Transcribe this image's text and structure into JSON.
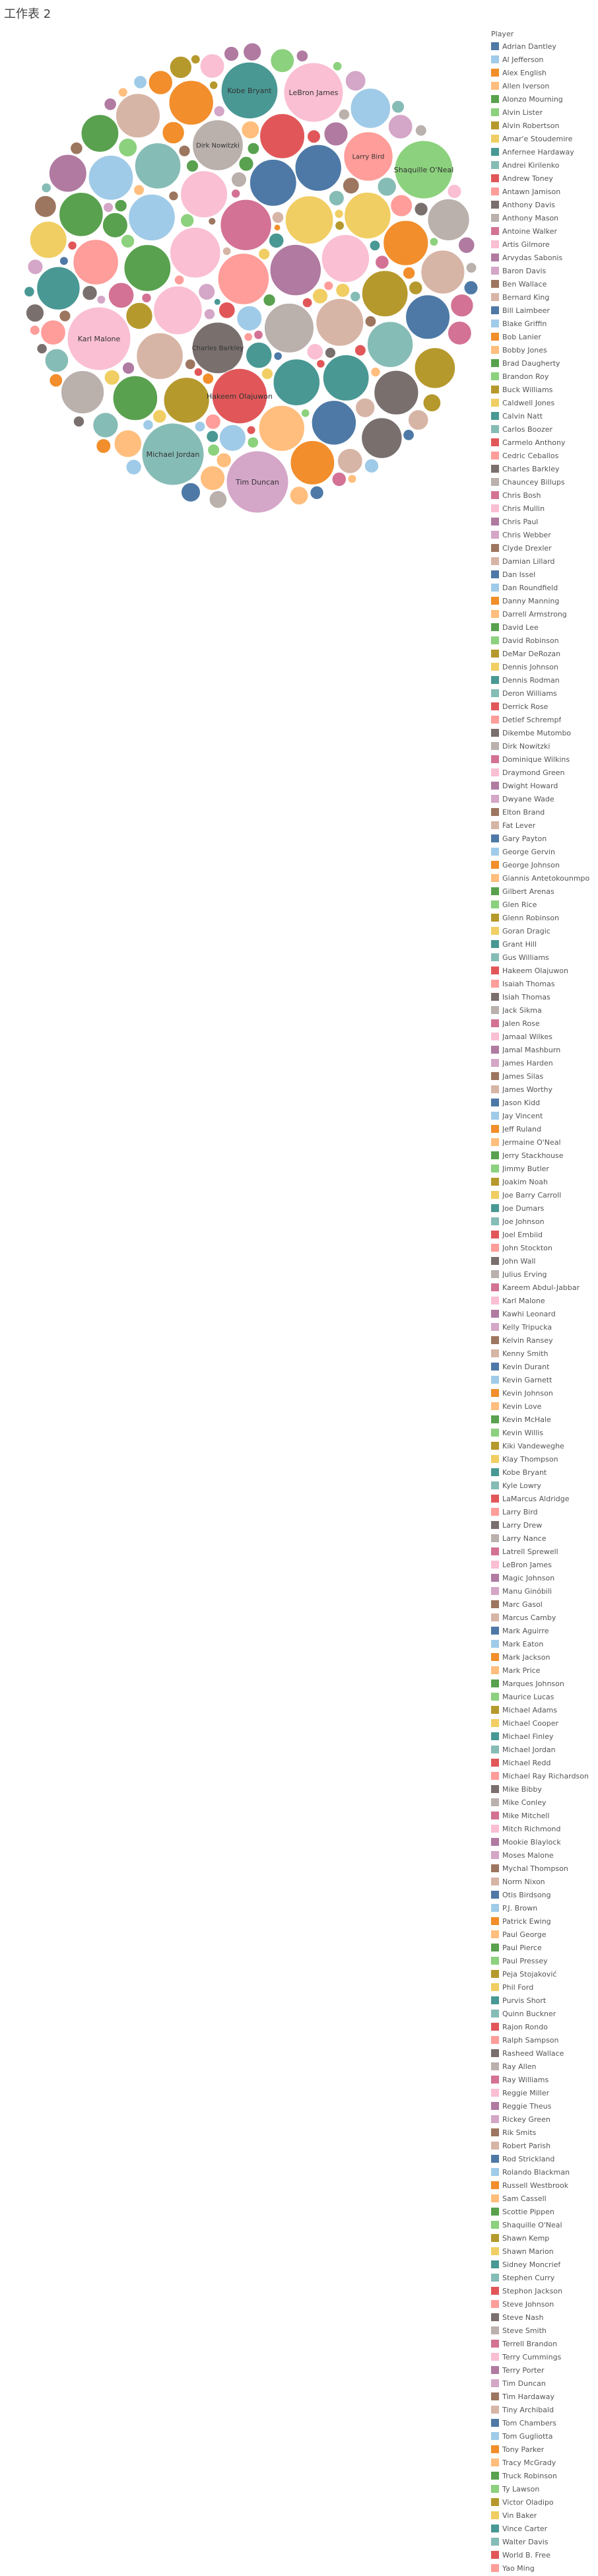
{
  "sheet_title": "工作表 2",
  "chart_data": {
    "type": "bubble",
    "title": "",
    "legend_position": "right",
    "legend_title": "Player",
    "players": [
      {
        "name": "Adrian Dantley",
        "color": "#4E79A7"
      },
      {
        "name": "Al Jefferson",
        "color": "#A0CBE8"
      },
      {
        "name": "Alex English",
        "color": "#F28E2B"
      },
      {
        "name": "Allen Iverson",
        "color": "#FFBE7D"
      },
      {
        "name": "Alonzo Mourning",
        "color": "#59A14F"
      },
      {
        "name": "Alvin Lister",
        "color": "#8CD17D"
      },
      {
        "name": "Alvin Robertson",
        "color": "#B6992D"
      },
      {
        "name": "Amar'e Stoudemire",
        "color": "#F1CE63"
      },
      {
        "name": "Anfernee Hardaway",
        "color": "#499894"
      },
      {
        "name": "Andrei Kirilenko",
        "color": "#86BCB6"
      },
      {
        "name": "Andrew Toney",
        "color": "#E15759"
      },
      {
        "name": "Antawn Jamison",
        "color": "#FF9D9A"
      },
      {
        "name": "Anthony Davis",
        "color": "#79706E"
      },
      {
        "name": "Anthony Mason",
        "color": "#BAB0AC"
      },
      {
        "name": "Antoine Walker",
        "color": "#D37295"
      },
      {
        "name": "Artis Gilmore",
        "color": "#FABFD2"
      },
      {
        "name": "Arvydas Sabonis",
        "color": "#B07AA1"
      },
      {
        "name": "Baron Davis",
        "color": "#D4A6C8"
      },
      {
        "name": "Ben Wallace",
        "color": "#9D7660"
      },
      {
        "name": "Bernard King",
        "color": "#D7B5A6"
      },
      {
        "name": "Bill Laimbeer",
        "color": "#4E79A7"
      },
      {
        "name": "Blake Griffin",
        "color": "#A0CBE8"
      },
      {
        "name": "Bob Lanier",
        "color": "#F28E2B"
      },
      {
        "name": "Bobby Jones",
        "color": "#FFBE7D"
      },
      {
        "name": "Brad Daugherty",
        "color": "#59A14F"
      },
      {
        "name": "Brandon Roy",
        "color": "#8CD17D"
      },
      {
        "name": "Buck Williams",
        "color": "#B6992D"
      },
      {
        "name": "Caldwell Jones",
        "color": "#F1CE63"
      },
      {
        "name": "Calvin Natt",
        "color": "#499894"
      },
      {
        "name": "Carlos Boozer",
        "color": "#86BCB6"
      },
      {
        "name": "Carmelo Anthony",
        "color": "#E15759"
      },
      {
        "name": "Cedric Ceballos",
        "color": "#FF9D9A"
      },
      {
        "name": "Charles Barkley",
        "color": "#79706E"
      },
      {
        "name": "Chauncey Billups",
        "color": "#BAB0AC"
      },
      {
        "name": "Chris Bosh",
        "color": "#D37295"
      },
      {
        "name": "Chris Mullin",
        "color": "#FABFD2"
      },
      {
        "name": "Chris Paul",
        "color": "#B07AA1"
      },
      {
        "name": "Chris Webber",
        "color": "#D4A6C8"
      },
      {
        "name": "Clyde Drexler",
        "color": "#9D7660"
      },
      {
        "name": "Damian Lillard",
        "color": "#D7B5A6"
      },
      {
        "name": "Dan Issel",
        "color": "#4E79A7"
      },
      {
        "name": "Dan Roundfield",
        "color": "#A0CBE8"
      },
      {
        "name": "Danny Manning",
        "color": "#F28E2B"
      },
      {
        "name": "Darrell Armstrong",
        "color": "#FFBE7D"
      },
      {
        "name": "David Lee",
        "color": "#59A14F"
      },
      {
        "name": "David Robinson",
        "color": "#8CD17D"
      },
      {
        "name": "DeMar DeRozan",
        "color": "#B6992D"
      },
      {
        "name": "Dennis Johnson",
        "color": "#F1CE63"
      },
      {
        "name": "Dennis Rodman",
        "color": "#499894"
      },
      {
        "name": "Deron Williams",
        "color": "#86BCB6"
      },
      {
        "name": "Derrick Rose",
        "color": "#E15759"
      },
      {
        "name": "Detlef Schrempf",
        "color": "#FF9D9A"
      },
      {
        "name": "Dikembe Mutombo",
        "color": "#79706E"
      },
      {
        "name": "Dirk Nowitzki",
        "color": "#BAB0AC"
      },
      {
        "name": "Dominique Wilkins",
        "color": "#D37295"
      },
      {
        "name": "Draymond Green",
        "color": "#FABFD2"
      },
      {
        "name": "Dwight Howard",
        "color": "#B07AA1"
      },
      {
        "name": "Dwyane Wade",
        "color": "#D4A6C8"
      },
      {
        "name": "Elton Brand",
        "color": "#9D7660"
      },
      {
        "name": "Fat Lever",
        "color": "#D7B5A6"
      },
      {
        "name": "Gary Payton",
        "color": "#4E79A7"
      },
      {
        "name": "George Gervin",
        "color": "#A0CBE8"
      },
      {
        "name": "George Johnson",
        "color": "#F28E2B"
      },
      {
        "name": "Giannis Antetokounmpo",
        "color": "#FFBE7D"
      },
      {
        "name": "Gilbert Arenas",
        "color": "#59A14F"
      },
      {
        "name": "Glen Rice",
        "color": "#8CD17D"
      },
      {
        "name": "Glenn Robinson",
        "color": "#B6992D"
      },
      {
        "name": "Goran Dragic",
        "color": "#F1CE63"
      },
      {
        "name": "Grant Hill",
        "color": "#499894"
      },
      {
        "name": "Gus Williams",
        "color": "#86BCB6"
      },
      {
        "name": "Hakeem Olajuwon",
        "color": "#E15759"
      },
      {
        "name": "Isaiah Thomas",
        "color": "#FF9D9A"
      },
      {
        "name": "Isiah Thomas",
        "color": "#79706E"
      },
      {
        "name": "Jack Sikma",
        "color": "#BAB0AC"
      },
      {
        "name": "Jalen Rose",
        "color": "#D37295"
      },
      {
        "name": "Jamaal Wilkes",
        "color": "#FABFD2"
      },
      {
        "name": "Jamal Mashburn",
        "color": "#B07AA1"
      },
      {
        "name": "James Harden",
        "color": "#D4A6C8"
      },
      {
        "name": "James Silas",
        "color": "#9D7660"
      },
      {
        "name": "James Worthy",
        "color": "#D7B5A6"
      },
      {
        "name": "Jason Kidd",
        "color": "#4E79A7"
      },
      {
        "name": "Jay Vincent",
        "color": "#A0CBE8"
      },
      {
        "name": "Jeff Ruland",
        "color": "#F28E2B"
      },
      {
        "name": "Jermaine O'Neal",
        "color": "#FFBE7D"
      },
      {
        "name": "Jerry Stackhouse",
        "color": "#59A14F"
      },
      {
        "name": "Jimmy Butler",
        "color": "#8CD17D"
      },
      {
        "name": "Joakim Noah",
        "color": "#B6992D"
      },
      {
        "name": "Joe Barry Carroll",
        "color": "#F1CE63"
      },
      {
        "name": "Joe Dumars",
        "color": "#499894"
      },
      {
        "name": "Joe Johnson",
        "color": "#86BCB6"
      },
      {
        "name": "Joel Embiid",
        "color": "#E15759"
      },
      {
        "name": "John Stockton",
        "color": "#FF9D9A"
      },
      {
        "name": "John Wall",
        "color": "#79706E"
      },
      {
        "name": "Julius Erving",
        "color": "#BAB0AC"
      },
      {
        "name": "Kareem Abdul-Jabbar",
        "color": "#D37295"
      },
      {
        "name": "Karl Malone",
        "color": "#FABFD2"
      },
      {
        "name": "Kawhi Leonard",
        "color": "#B07AA1"
      },
      {
        "name": "Kelly Tripucka",
        "color": "#D4A6C8"
      },
      {
        "name": "Kelvin Ransey",
        "color": "#9D7660"
      },
      {
        "name": "Kenny Smith",
        "color": "#D7B5A6"
      },
      {
        "name": "Kevin Durant",
        "color": "#4E79A7"
      },
      {
        "name": "Kevin Garnett",
        "color": "#A0CBE8"
      },
      {
        "name": "Kevin Johnson",
        "color": "#F28E2B"
      },
      {
        "name": "Kevin Love",
        "color": "#FFBE7D"
      },
      {
        "name": "Kevin McHale",
        "color": "#59A14F"
      },
      {
        "name": "Kevin Willis",
        "color": "#8CD17D"
      },
      {
        "name": "Kiki Vandeweghe",
        "color": "#B6992D"
      },
      {
        "name": "Klay Thompson",
        "color": "#F1CE63"
      },
      {
        "name": "Kobe Bryant",
        "color": "#499894"
      },
      {
        "name": "Kyle Lowry",
        "color": "#86BCB6"
      },
      {
        "name": "LaMarcus Aldridge",
        "color": "#E15759"
      },
      {
        "name": "Larry Bird",
        "color": "#FF9D9A"
      },
      {
        "name": "Larry Drew",
        "color": "#79706E"
      },
      {
        "name": "Larry Nance",
        "color": "#BAB0AC"
      },
      {
        "name": "Latrell Sprewell",
        "color": "#D37295"
      },
      {
        "name": "LeBron James",
        "color": "#FABFD2"
      },
      {
        "name": "Magic Johnson",
        "color": "#B07AA1"
      },
      {
        "name": "Manu Ginóbili",
        "color": "#D4A6C8"
      },
      {
        "name": "Marc Gasol",
        "color": "#9D7660"
      },
      {
        "name": "Marcus Camby",
        "color": "#D7B5A6"
      },
      {
        "name": "Mark Aguirre",
        "color": "#4E79A7"
      },
      {
        "name": "Mark Eaton",
        "color": "#A0CBE8"
      },
      {
        "name": "Mark Jackson",
        "color": "#F28E2B"
      },
      {
        "name": "Mark Price",
        "color": "#FFBE7D"
      },
      {
        "name": "Marques Johnson",
        "color": "#59A14F"
      },
      {
        "name": "Maurice Lucas",
        "color": "#8CD17D"
      },
      {
        "name": "Michael Adams",
        "color": "#B6992D"
      },
      {
        "name": "Michael Cooper",
        "color": "#F1CE63"
      },
      {
        "name": "Michael Finley",
        "color": "#499894"
      },
      {
        "name": "Michael Jordan",
        "color": "#86BCB6"
      },
      {
        "name": "Michael Redd",
        "color": "#E15759"
      },
      {
        "name": "Michael Ray Richardson",
        "color": "#FF9D9A"
      },
      {
        "name": "Mike Bibby",
        "color": "#79706E"
      },
      {
        "name": "Mike Conley",
        "color": "#BAB0AC"
      },
      {
        "name": "Mike Mitchell",
        "color": "#D37295"
      },
      {
        "name": "Mitch Richmond",
        "color": "#FABFD2"
      },
      {
        "name": "Mookie Blaylock",
        "color": "#B07AA1"
      },
      {
        "name": "Moses Malone",
        "color": "#D4A6C8"
      },
      {
        "name": "Mychal Thompson",
        "color": "#9D7660"
      },
      {
        "name": "Norm Nixon",
        "color": "#D7B5A6"
      },
      {
        "name": "Otis Birdsong",
        "color": "#4E79A7"
      },
      {
        "name": "P.J. Brown",
        "color": "#A0CBE8"
      },
      {
        "name": "Patrick Ewing",
        "color": "#F28E2B"
      },
      {
        "name": "Paul George",
        "color": "#FFBE7D"
      },
      {
        "name": "Paul Pierce",
        "color": "#59A14F"
      },
      {
        "name": "Paul Pressey",
        "color": "#8CD17D"
      },
      {
        "name": "Peja Stojaković",
        "color": "#B6992D"
      },
      {
        "name": "Phil Ford",
        "color": "#F1CE63"
      },
      {
        "name": "Purvis Short",
        "color": "#499894"
      },
      {
        "name": "Quinn Buckner",
        "color": "#86BCB6"
      },
      {
        "name": "Rajon Rondo",
        "color": "#E15759"
      },
      {
        "name": "Ralph Sampson",
        "color": "#FF9D9A"
      },
      {
        "name": "Rasheed Wallace",
        "color": "#79706E"
      },
      {
        "name": "Ray Allen",
        "color": "#BAB0AC"
      },
      {
        "name": "Ray Williams",
        "color": "#D37295"
      },
      {
        "name": "Reggie Miller",
        "color": "#FABFD2"
      },
      {
        "name": "Reggie Theus",
        "color": "#B07AA1"
      },
      {
        "name": "Rickey Green",
        "color": "#D4A6C8"
      },
      {
        "name": "Rik Smits",
        "color": "#9D7660"
      },
      {
        "name": "Robert Parish",
        "color": "#D7B5A6"
      },
      {
        "name": "Rod Strickland",
        "color": "#4E79A7"
      },
      {
        "name": "Rolando Blackman",
        "color": "#A0CBE8"
      },
      {
        "name": "Russell Westbrook",
        "color": "#F28E2B"
      },
      {
        "name": "Sam Cassell",
        "color": "#FFBE7D"
      },
      {
        "name": "Scottie Pippen",
        "color": "#59A14F"
      },
      {
        "name": "Shaquille O'Neal",
        "color": "#8CD17D"
      },
      {
        "name": "Shawn Kemp",
        "color": "#B6992D"
      },
      {
        "name": "Shawn Marion",
        "color": "#F1CE63"
      },
      {
        "name": "Sidney Moncrief",
        "color": "#499894"
      },
      {
        "name": "Stephen Curry",
        "color": "#86BCB6"
      },
      {
        "name": "Stephon Jackson",
        "color": "#E15759"
      },
      {
        "name": "Steve Johnson",
        "color": "#FF9D9A"
      },
      {
        "name": "Steve Nash",
        "color": "#79706E"
      },
      {
        "name": "Steve Smith",
        "color": "#BAB0AC"
      },
      {
        "name": "Terrell Brandon",
        "color": "#D37295"
      },
      {
        "name": "Terry Cummings",
        "color": "#FABFD2"
      },
      {
        "name": "Terry Porter",
        "color": "#B07AA1"
      },
      {
        "name": "Tim Duncan",
        "color": "#D4A6C8"
      },
      {
        "name": "Tim Hardaway",
        "color": "#9D7660"
      },
      {
        "name": "Tiny Archibald",
        "color": "#D7B5A6"
      },
      {
        "name": "Tom Chambers",
        "color": "#4E79A7"
      },
      {
        "name": "Tom Gugliotta",
        "color": "#A0CBE8"
      },
      {
        "name": "Tony Parker",
        "color": "#F28E2B"
      },
      {
        "name": "Tracy McGrady",
        "color": "#FFBE7D"
      },
      {
        "name": "Truck Robinson",
        "color": "#59A14F"
      },
      {
        "name": "Ty Lawson",
        "color": "#8CD17D"
      },
      {
        "name": "Victor Oladipo",
        "color": "#B6992D"
      },
      {
        "name": "Vin Baker",
        "color": "#F1CE63"
      },
      {
        "name": "Vince Carter",
        "color": "#499894"
      },
      {
        "name": "Walter Davis",
        "color": "#86BCB6"
      },
      {
        "name": "World B. Free",
        "color": "#E15759"
      },
      {
        "name": "Yao Ming",
        "color": "#FF9D9A"
      }
    ],
    "labeled_bubbles": [
      {
        "name": "Kobe Bryant",
        "value": 100
      },
      {
        "name": "LeBron James",
        "value": 110
      },
      {
        "name": "Dirk Nowitzki",
        "value": 80
      },
      {
        "name": "Larry Bird",
        "value": 75
      },
      {
        "name": "Shaquille O'Neal",
        "value": 105
      },
      {
        "name": "Karl Malone",
        "value": 125
      },
      {
        "name": "Charles Barkley",
        "value": 82
      },
      {
        "name": "Hakeem Olajuwon",
        "value": 95
      },
      {
        "name": "Michael Jordan",
        "value": 120
      },
      {
        "name": "Tim Duncan",
        "value": 120
      }
    ]
  }
}
